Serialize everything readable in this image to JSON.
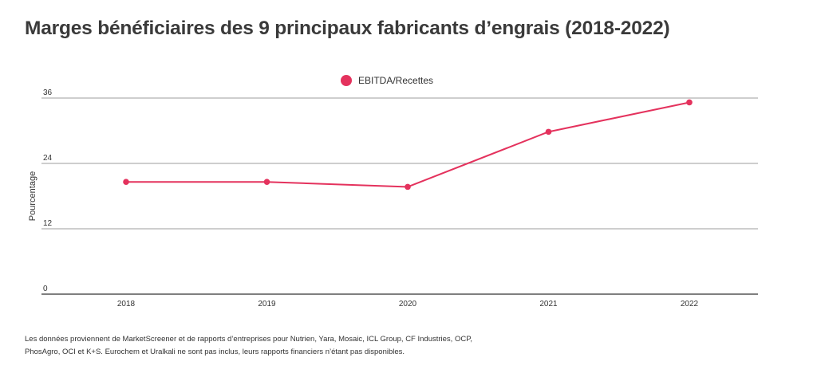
{
  "title": "Marges bénéficiaires des 9 principaux fabricants d’engrais (2018-2022)",
  "legend": {
    "label": "EBITDA/Recettes",
    "color": "#e4325d"
  },
  "footnote": {
    "line1": "Les données proviennent de MarketScreener et de rapports d’entreprises pour Nutrien, Yara, Mosaic, ICL Group, CF Industries, OCP,",
    "line2": "PhosAgro, OCI et K+S. Eurochem et Uralkali ne sont pas inclus, leurs rapports financiers n’étant pas disponibles."
  },
  "chart_data": {
    "type": "line",
    "title": "Marges bénéficiaires des 9 principaux fabricants d’engrais (2018-2022)",
    "xlabel": "",
    "ylabel": "Pourcentage",
    "categories": [
      "2018",
      "2019",
      "2020",
      "2021",
      "2022"
    ],
    "series": [
      {
        "name": "EBITDA/Recettes",
        "values": [
          20.6,
          20.6,
          19.7,
          29.8,
          35.2
        ],
        "color": "#e4325d"
      }
    ],
    "ylim": [
      0,
      36
    ],
    "yticks": [
      "0",
      "12",
      "24",
      "36"
    ],
    "grid": true,
    "legend_position": "top-center"
  }
}
